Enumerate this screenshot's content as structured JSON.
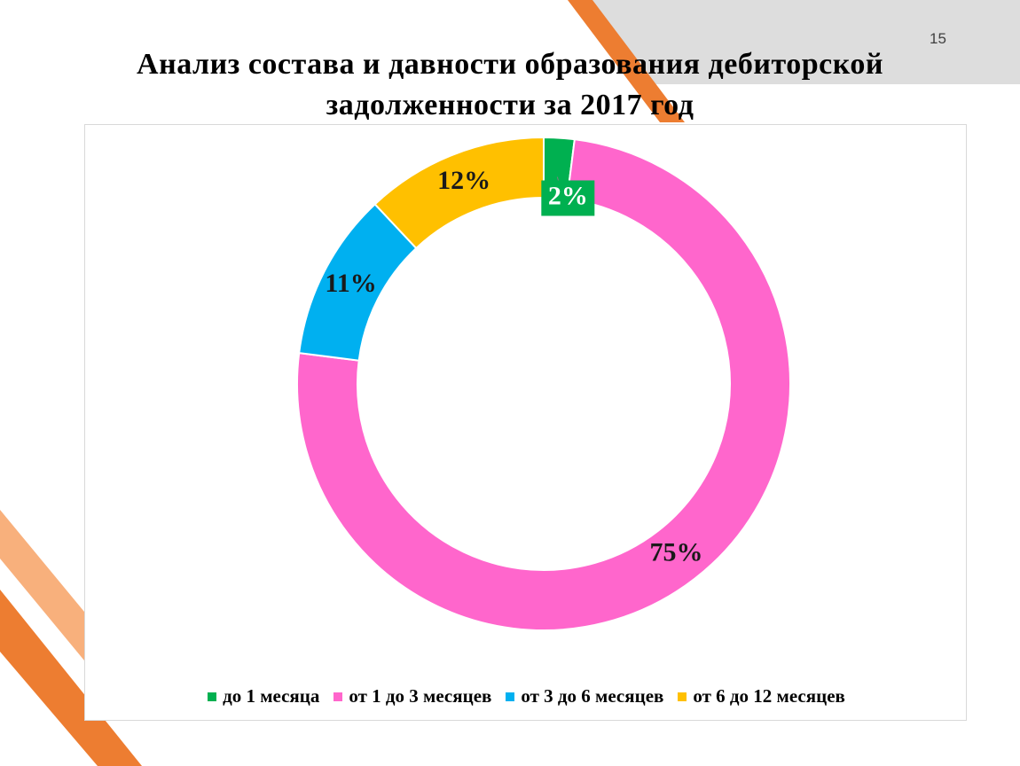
{
  "slide": {
    "number": "15",
    "title_line1": "Анализ состава и давности образования дебиторской",
    "title_line2": "задолженности за 2017 год"
  },
  "colors": {
    "orange": "#ED7D31",
    "light_orange": "#F8B07C",
    "gray_band": "#D9D9D9"
  },
  "chart_data": {
    "type": "pie",
    "variant": "doughnut",
    "title": "",
    "categories": [
      "до 1 месяца",
      "от 1 до 3 месяцев",
      "от 3 до 6 месяцев",
      "от 6 до 12 месяцев"
    ],
    "values": [
      2,
      75,
      11,
      12
    ],
    "labels": [
      "2%",
      "75%",
      "11%",
      "12%"
    ],
    "colors": [
      "#00B050",
      "#FF66CC",
      "#00B0F0",
      "#FFC000"
    ],
    "legend_position": "bottom"
  }
}
